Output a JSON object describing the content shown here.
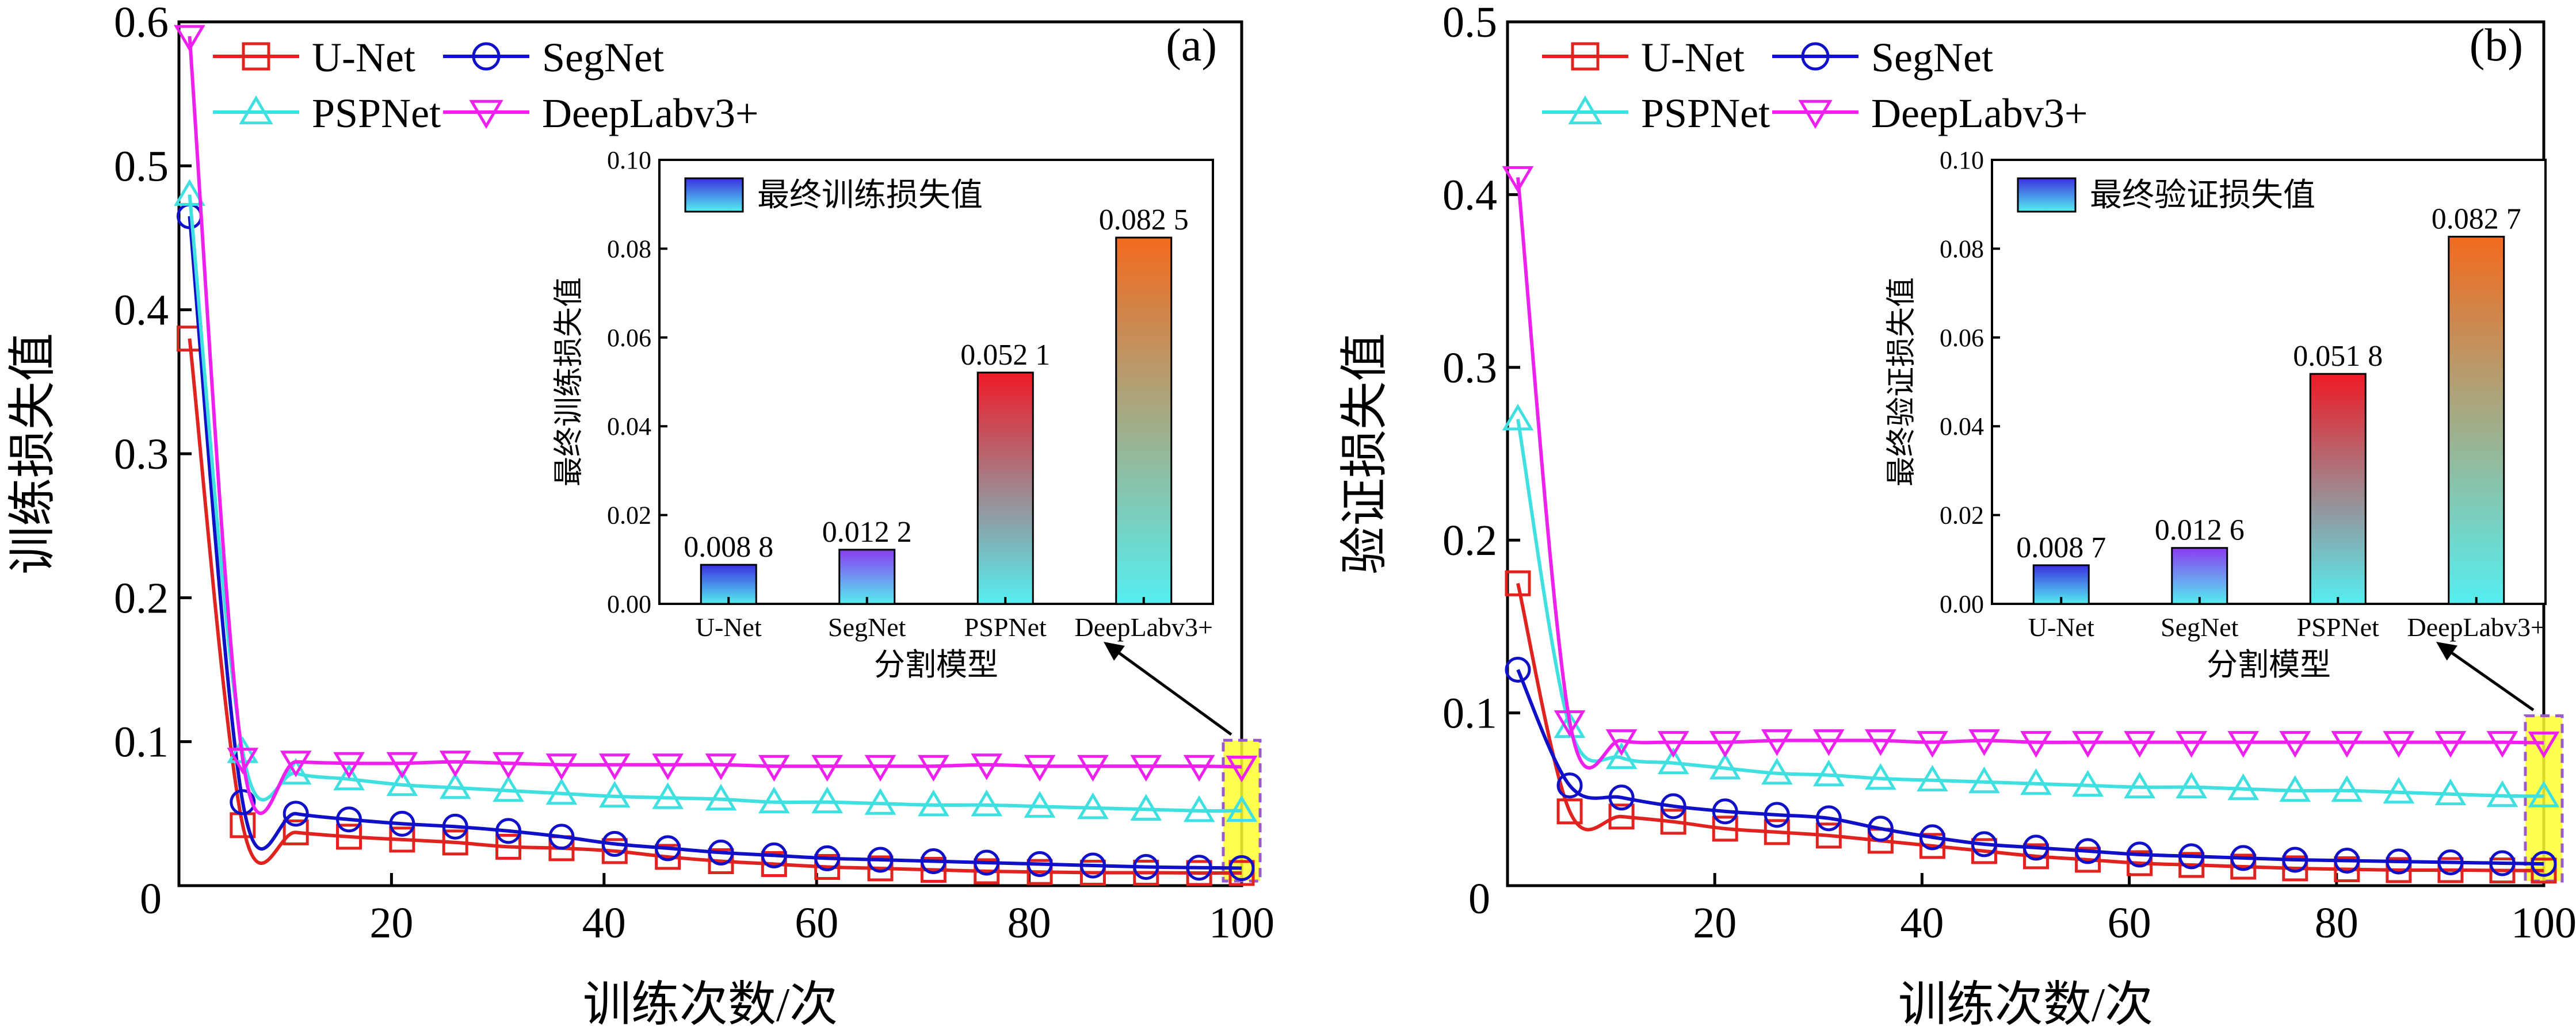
{
  "colors": {
    "unet": "#e0231e",
    "segnet": "#1010c8",
    "pspnet": "#40e0e0",
    "deeplab": "#ee20ee",
    "highlight_fill": "#ffff33",
    "highlight_border": "#9b59d0",
    "bar_blue_top": "#3a30e0",
    "bar_cyan": "#55eef0",
    "bar_purple_top": "#8a3cf0",
    "bar_red_top": "#ee1a26",
    "bar_orange_top": "#f26a1e"
  },
  "chart_data": [
    {
      "type": "line",
      "panel_label": "(a)",
      "xlabel": "训练次数/次",
      "ylabel": "训练损失值",
      "xlim": [
        0,
        100
      ],
      "ylim": [
        0,
        0.6
      ],
      "x_tick_values": [
        20,
        40,
        60,
        80,
        100
      ],
      "x_tick_labels": [
        "20",
        "40",
        "60",
        "80",
        "100"
      ],
      "y_tick_values": [
        0.1,
        0.2,
        0.3,
        0.4,
        0.5,
        0.6
      ],
      "y_tick_labels": [
        "0.1",
        "0.2",
        "0.3",
        "0.4",
        "0.5",
        "0.6"
      ],
      "origin_label": "0",
      "legend": [
        "U-Net",
        "SegNet",
        "PSPNet",
        "DeepLabv3+"
      ],
      "series": [
        {
          "name": "U-Net",
          "marker": "square",
          "x": [
            1,
            6,
            11,
            16,
            21,
            26,
            31,
            36,
            41,
            46,
            51,
            56,
            61,
            66,
            71,
            76,
            81,
            86,
            91,
            96,
            100
          ],
          "values": [
            0.38,
            0.042,
            0.037,
            0.034,
            0.032,
            0.03,
            0.027,
            0.026,
            0.024,
            0.02,
            0.017,
            0.015,
            0.013,
            0.012,
            0.011,
            0.01,
            0.0095,
            0.009,
            0.009,
            0.0088,
            0.0088
          ]
        },
        {
          "name": "SegNet",
          "marker": "circle",
          "x": [
            1,
            6,
            11,
            16,
            21,
            26,
            31,
            36,
            41,
            46,
            51,
            56,
            61,
            66,
            71,
            76,
            81,
            86,
            91,
            96,
            100
          ],
          "values": [
            0.465,
            0.058,
            0.05,
            0.046,
            0.043,
            0.041,
            0.038,
            0.034,
            0.029,
            0.026,
            0.023,
            0.021,
            0.019,
            0.018,
            0.017,
            0.016,
            0.015,
            0.014,
            0.013,
            0.0125,
            0.0122
          ]
        },
        {
          "name": "PSPNet",
          "marker": "triangle-up",
          "x": [
            1,
            6,
            11,
            16,
            21,
            26,
            31,
            36,
            41,
            46,
            51,
            56,
            61,
            66,
            71,
            76,
            81,
            86,
            91,
            96,
            100
          ],
          "values": [
            0.48,
            0.093,
            0.078,
            0.074,
            0.07,
            0.068,
            0.066,
            0.064,
            0.062,
            0.061,
            0.06,
            0.058,
            0.058,
            0.057,
            0.056,
            0.056,
            0.055,
            0.054,
            0.053,
            0.052,
            0.0521
          ]
        },
        {
          "name": "DeepLabv3+",
          "marker": "triangle-down",
          "x": [
            1,
            6,
            11,
            16,
            21,
            26,
            31,
            36,
            41,
            46,
            51,
            56,
            61,
            66,
            71,
            76,
            81,
            86,
            91,
            96,
            100
          ],
          "values": [
            0.59,
            0.088,
            0.086,
            0.085,
            0.085,
            0.086,
            0.085,
            0.084,
            0.084,
            0.084,
            0.084,
            0.083,
            0.083,
            0.083,
            0.083,
            0.084,
            0.083,
            0.083,
            0.083,
            0.083,
            0.0825
          ]
        }
      ],
      "highlight_x": 100,
      "inset": {
        "type": "bar",
        "legend": "最终训练损失值",
        "xlabel": "分割模型",
        "ylabel": "最终训练损失值",
        "ylim": [
          0,
          0.1
        ],
        "y_tick_values": [
          0.0,
          0.02,
          0.04,
          0.06,
          0.08,
          0.1
        ],
        "y_tick_labels": [
          "0.00",
          "0.02",
          "0.04",
          "0.06",
          "0.08",
          "0.10"
        ],
        "categories": [
          "U-Net",
          "SegNet",
          "PSPNet",
          "DeepLabv3+"
        ],
        "values": [
          0.0088,
          0.0122,
          0.0521,
          0.0825
        ],
        "value_labels": [
          "0.008 8",
          "0.012 2",
          "0.052 1",
          "0.082 5"
        ]
      }
    },
    {
      "type": "line",
      "panel_label": "(b)",
      "xlabel": "训练次数/次",
      "ylabel": "验证损失值",
      "xlim": [
        0,
        100
      ],
      "ylim": [
        0,
        0.5
      ],
      "x_tick_values": [
        20,
        40,
        60,
        80,
        100
      ],
      "x_tick_labels": [
        "20",
        "40",
        "60",
        "80",
        "100"
      ],
      "y_tick_values": [
        0.1,
        0.2,
        0.3,
        0.4,
        0.5
      ],
      "y_tick_labels": [
        "0.1",
        "0.2",
        "0.3",
        "0.4",
        "0.5"
      ],
      "origin_label": "0",
      "legend": [
        "U-Net",
        "SegNet",
        "PSPNet",
        "DeepLabv3+"
      ],
      "series": [
        {
          "name": "U-Net",
          "marker": "square",
          "x": [
            1,
            6,
            11,
            16,
            21,
            26,
            31,
            36,
            41,
            46,
            51,
            56,
            61,
            66,
            71,
            76,
            81,
            86,
            91,
            96,
            100
          ],
          "values": [
            0.175,
            0.043,
            0.04,
            0.037,
            0.033,
            0.031,
            0.029,
            0.026,
            0.023,
            0.02,
            0.017,
            0.015,
            0.013,
            0.012,
            0.011,
            0.01,
            0.0095,
            0.009,
            0.009,
            0.0088,
            0.0087
          ]
        },
        {
          "name": "SegNet",
          "marker": "circle",
          "x": [
            1,
            6,
            11,
            16,
            21,
            26,
            31,
            36,
            41,
            46,
            51,
            56,
            61,
            66,
            71,
            76,
            81,
            86,
            91,
            96,
            100
          ],
          "values": [
            0.125,
            0.058,
            0.051,
            0.046,
            0.043,
            0.041,
            0.039,
            0.033,
            0.028,
            0.024,
            0.022,
            0.02,
            0.018,
            0.017,
            0.016,
            0.015,
            0.0145,
            0.014,
            0.0135,
            0.013,
            0.0126
          ]
        },
        {
          "name": "PSPNet",
          "marker": "triangle-up",
          "x": [
            1,
            6,
            11,
            16,
            21,
            26,
            31,
            36,
            41,
            46,
            51,
            56,
            61,
            66,
            71,
            76,
            81,
            86,
            91,
            96,
            100
          ],
          "values": [
            0.27,
            0.092,
            0.074,
            0.071,
            0.068,
            0.065,
            0.064,
            0.062,
            0.061,
            0.06,
            0.059,
            0.058,
            0.057,
            0.057,
            0.056,
            0.055,
            0.055,
            0.054,
            0.053,
            0.052,
            0.0518
          ]
        },
        {
          "name": "DeepLabv3+",
          "marker": "triangle-down",
          "x": [
            1,
            6,
            11,
            16,
            21,
            26,
            31,
            36,
            41,
            46,
            51,
            56,
            61,
            66,
            71,
            76,
            81,
            86,
            91,
            96,
            100
          ],
          "values": [
            0.41,
            0.095,
            0.084,
            0.083,
            0.083,
            0.084,
            0.084,
            0.084,
            0.083,
            0.084,
            0.083,
            0.083,
            0.083,
            0.083,
            0.083,
            0.083,
            0.083,
            0.083,
            0.083,
            0.083,
            0.0827
          ]
        }
      ],
      "highlight_x": 100,
      "inset": {
        "type": "bar",
        "legend": "最终验证损失值",
        "xlabel": "分割模型",
        "ylabel": "最终验证损失值",
        "ylim": [
          0,
          0.1
        ],
        "y_tick_values": [
          0.0,
          0.02,
          0.04,
          0.06,
          0.08,
          0.1
        ],
        "y_tick_labels": [
          "0.00",
          "0.02",
          "0.04",
          "0.06",
          "0.08",
          "0.10"
        ],
        "categories": [
          "U-Net",
          "SegNet",
          "PSPNet",
          "DeepLabv3+"
        ],
        "values": [
          0.0087,
          0.0126,
          0.0518,
          0.0827
        ],
        "value_labels": [
          "0.008 7",
          "0.012 6",
          "0.051 8",
          "0.082 7"
        ]
      }
    }
  ]
}
